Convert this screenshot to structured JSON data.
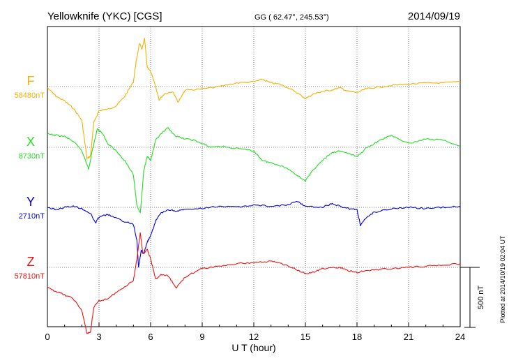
{
  "header": {
    "station": "Yellowknife (YKC)  [CGS]",
    "coords": "GG ( 62.47°, 245.53°)",
    "date": "2014/09/19"
  },
  "side_note": "Plotted at 2014/10/19 02:04 UT",
  "scale_label": "500 nT",
  "chart_data": {
    "type": "line",
    "xlabel": "U T (hour)",
    "xlim": [
      0,
      24
    ],
    "xticks": [
      0,
      3,
      6,
      9,
      12,
      15,
      18,
      21,
      24
    ],
    "ylabel": "",
    "scale_bar_nT": 500,
    "grid": true,
    "series": [
      {
        "name": "F",
        "baseline_label": "58480nT",
        "baseline_nT": 58480,
        "color": "#f5b000",
        "points": [
          [
            0,
            58470
          ],
          [
            0.5,
            58400
          ],
          [
            1,
            58360
          ],
          [
            1.5,
            58300
          ],
          [
            2,
            58200
          ],
          [
            2.3,
            57880
          ],
          [
            2.5,
            57900
          ],
          [
            2.7,
            58180
          ],
          [
            3,
            58280
          ],
          [
            3.5,
            58290
          ],
          [
            4,
            58320
          ],
          [
            4.5,
            58400
          ],
          [
            5,
            58520
          ],
          [
            5.15,
            58680
          ],
          [
            5.35,
            58840
          ],
          [
            5.5,
            58790
          ],
          [
            5.65,
            58880
          ],
          [
            5.8,
            58640
          ],
          [
            6,
            58610
          ],
          [
            6.2,
            58520
          ],
          [
            6.5,
            58370
          ],
          [
            6.8,
            58420
          ],
          [
            7.3,
            58440
          ],
          [
            7.6,
            58350
          ],
          [
            8,
            58450
          ],
          [
            9,
            58460
          ],
          [
            10,
            58480
          ],
          [
            11,
            58510
          ],
          [
            12,
            58520
          ],
          [
            12.5,
            58540
          ],
          [
            13,
            58510
          ],
          [
            13.5,
            58500
          ],
          [
            14,
            58470
          ],
          [
            14.5,
            58430
          ],
          [
            15,
            58380
          ],
          [
            15.5,
            58420
          ],
          [
            16,
            58440
          ],
          [
            16.5,
            58450
          ],
          [
            17,
            58470
          ],
          [
            17.5,
            58440
          ],
          [
            18,
            58430
          ],
          [
            18.5,
            58460
          ],
          [
            19,
            58470
          ],
          [
            20,
            58490
          ],
          [
            21,
            58500
          ],
          [
            22,
            58510
          ],
          [
            23,
            58510
          ],
          [
            24,
            58520
          ]
        ]
      },
      {
        "name": "X",
        "baseline_label": "8730nT",
        "baseline_nT": 8730,
        "color": "#22dd22",
        "points": [
          [
            0,
            8840
          ],
          [
            0.5,
            8830
          ],
          [
            1,
            8820
          ],
          [
            1.5,
            8780
          ],
          [
            2,
            8700
          ],
          [
            2.4,
            8550
          ],
          [
            2.6,
            8700
          ],
          [
            2.9,
            8880
          ],
          [
            3.2,
            8850
          ],
          [
            3.5,
            8760
          ],
          [
            4,
            8700
          ],
          [
            4.5,
            8620
          ],
          [
            5,
            8500
          ],
          [
            5.2,
            8250
          ],
          [
            5.4,
            8180
          ],
          [
            5.6,
            8530
          ],
          [
            5.8,
            8660
          ],
          [
            6,
            8620
          ],
          [
            6.3,
            8790
          ],
          [
            6.6,
            8840
          ],
          [
            7,
            8890
          ],
          [
            7.5,
            8820
          ],
          [
            8,
            8800
          ],
          [
            8.5,
            8790
          ],
          [
            9,
            8760
          ],
          [
            9.5,
            8730
          ],
          [
            10,
            8740
          ],
          [
            11,
            8720
          ],
          [
            12,
            8700
          ],
          [
            12.5,
            8620
          ],
          [
            13,
            8600
          ],
          [
            13.5,
            8580
          ],
          [
            14,
            8550
          ],
          [
            14.5,
            8500
          ],
          [
            15,
            8450
          ],
          [
            15.5,
            8550
          ],
          [
            16,
            8620
          ],
          [
            16.5,
            8680
          ],
          [
            17,
            8700
          ],
          [
            17.5,
            8680
          ],
          [
            18,
            8650
          ],
          [
            18.5,
            8720
          ],
          [
            19,
            8760
          ],
          [
            19.5,
            8800
          ],
          [
            20,
            8830
          ],
          [
            21,
            8760
          ],
          [
            22,
            8800
          ],
          [
            23,
            8790
          ],
          [
            24,
            8740
          ]
        ]
      },
      {
        "name": "Y",
        "baseline_label": "2710nT",
        "baseline_nT": 2710,
        "color": "#0000dd",
        "points": [
          [
            0,
            2710
          ],
          [
            0.5,
            2690
          ],
          [
            1,
            2710
          ],
          [
            1.5,
            2720
          ],
          [
            2,
            2700
          ],
          [
            2.5,
            2660
          ],
          [
            2.8,
            2580
          ],
          [
            3,
            2630
          ],
          [
            3.5,
            2650
          ],
          [
            4,
            2620
          ],
          [
            4.5,
            2590
          ],
          [
            5,
            2570
          ],
          [
            5.2,
            2440
          ],
          [
            5.3,
            2210
          ],
          [
            5.45,
            2350
          ],
          [
            5.6,
            2320
          ],
          [
            5.8,
            2420
          ],
          [
            6,
            2470
          ],
          [
            6.3,
            2600
          ],
          [
            6.6,
            2660
          ],
          [
            7,
            2690
          ],
          [
            7.5,
            2680
          ],
          [
            8,
            2690
          ],
          [
            9,
            2700
          ],
          [
            10,
            2720
          ],
          [
            11,
            2710
          ],
          [
            12,
            2730
          ],
          [
            13,
            2720
          ],
          [
            14,
            2730
          ],
          [
            14.5,
            2760
          ],
          [
            15,
            2720
          ],
          [
            16,
            2710
          ],
          [
            16.5,
            2740
          ],
          [
            17,
            2720
          ],
          [
            17.5,
            2700
          ],
          [
            18,
            2690
          ],
          [
            18.2,
            2560
          ],
          [
            18.5,
            2620
          ],
          [
            19,
            2670
          ],
          [
            20,
            2700
          ],
          [
            21,
            2710
          ],
          [
            22,
            2700
          ],
          [
            23,
            2710
          ],
          [
            24,
            2720
          ]
        ]
      },
      {
        "name": "Z",
        "baseline_label": "57810nT",
        "baseline_nT": 57810,
        "color": "#ee1111",
        "points": [
          [
            0,
            57640
          ],
          [
            0.5,
            57610
          ],
          [
            1,
            57580
          ],
          [
            1.5,
            57550
          ],
          [
            2,
            57450
          ],
          [
            2.3,
            57260
          ],
          [
            2.5,
            57270
          ],
          [
            2.7,
            57480
          ],
          [
            3,
            57530
          ],
          [
            3.5,
            57550
          ],
          [
            4,
            57600
          ],
          [
            4.5,
            57650
          ],
          [
            5,
            57700
          ],
          [
            5.2,
            57880
          ],
          [
            5.4,
            58100
          ],
          [
            5.55,
            57920
          ],
          [
            5.8,
            57960
          ],
          [
            6,
            57880
          ],
          [
            6.3,
            57710
          ],
          [
            6.6,
            57750
          ],
          [
            7,
            57740
          ],
          [
            7.5,
            57640
          ],
          [
            8,
            57730
          ],
          [
            9,
            57800
          ],
          [
            10,
            57820
          ],
          [
            11,
            57840
          ],
          [
            12,
            57850
          ],
          [
            13,
            57860
          ],
          [
            13.5,
            57850
          ],
          [
            14,
            57820
          ],
          [
            14.5,
            57790
          ],
          [
            15,
            57760
          ],
          [
            15.5,
            57770
          ],
          [
            16,
            57800
          ],
          [
            17,
            57810
          ],
          [
            17.5,
            57780
          ],
          [
            18,
            57770
          ],
          [
            19,
            57790
          ],
          [
            20,
            57800
          ],
          [
            21,
            57810
          ],
          [
            22,
            57820
          ],
          [
            23,
            57830
          ],
          [
            24,
            57840
          ]
        ]
      }
    ]
  }
}
